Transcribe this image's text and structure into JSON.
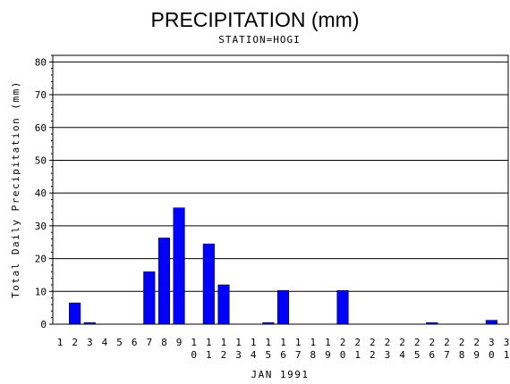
{
  "chart_data": {
    "type": "bar",
    "title": "PRECIPITATION (mm)",
    "subtitle": "STATION=HOGI",
    "ylabel": "Total Daily Precipitation (mm)",
    "xlabel": "JAN 1991",
    "ylim": [
      0,
      82
    ],
    "yticks": [
      0,
      10,
      20,
      30,
      40,
      50,
      60,
      70,
      80
    ],
    "categories": [
      "1",
      "2",
      "3",
      "4",
      "5",
      "6",
      "7",
      "8",
      "9",
      "10",
      "11",
      "12",
      "13",
      "14",
      "15",
      "16",
      "17",
      "18",
      "19",
      "20",
      "21",
      "22",
      "23",
      "24",
      "25",
      "26",
      "27",
      "28",
      "29",
      "30",
      "31"
    ],
    "values": [
      0,
      6.5,
      0.5,
      0,
      0,
      0,
      16,
      26.3,
      35.5,
      0,
      24.5,
      12,
      0,
      0,
      0.5,
      10.3,
      0,
      0,
      0,
      10.3,
      0,
      0,
      0,
      0,
      0,
      0.5,
      0,
      0,
      0,
      1.2,
      0
    ],
    "grid": true,
    "bar_color": "#0000ff"
  }
}
